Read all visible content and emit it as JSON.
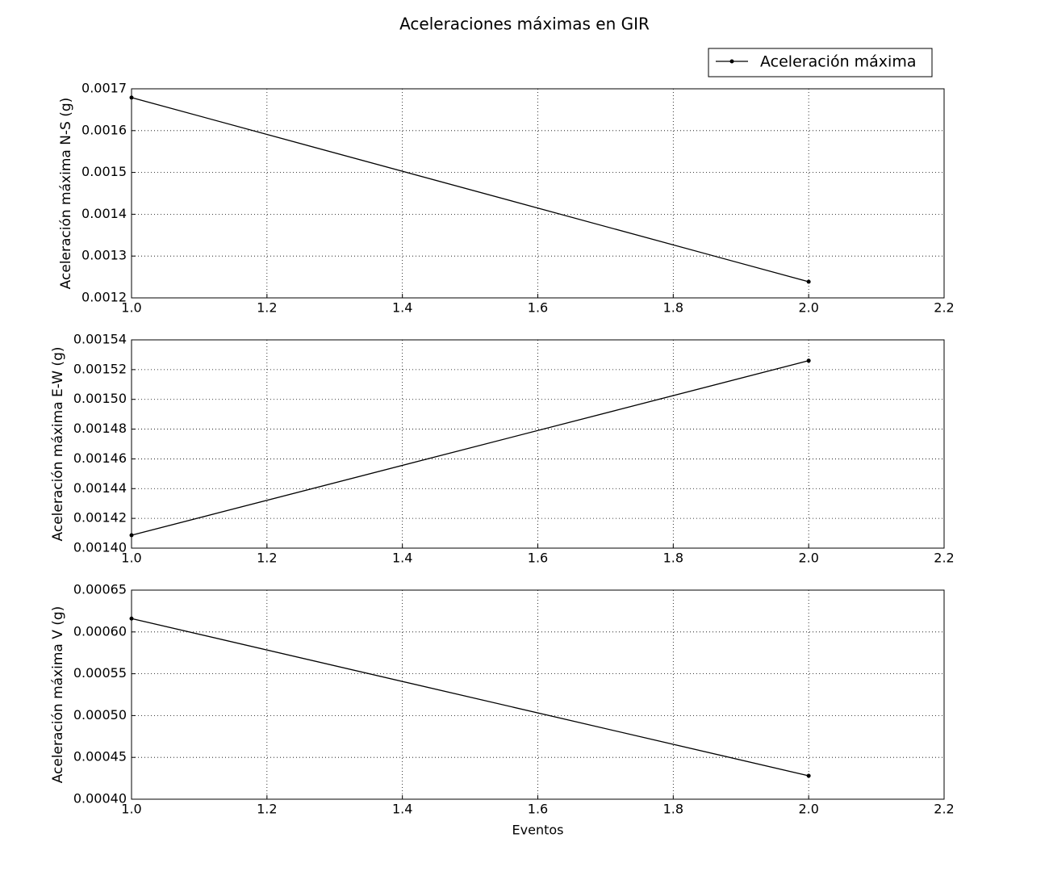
{
  "chart_data": [
    {
      "type": "line",
      "title": "Aceleraciones máximas en GIR",
      "legend": "upper right",
      "grid": true,
      "ylabel": "Aceleración máxima N-S (g)",
      "x": [
        1,
        2
      ],
      "series": [
        {
          "name": "Aceleración máxima",
          "color": "#000000",
          "values": [
            0.001679,
            0.0012386
          ]
        }
      ],
      "xlim": [
        1.0,
        2.2
      ],
      "xticks": [
        {
          "value": 1,
          "label": "1.0"
        },
        1.2,
        1.4,
        1.6,
        1.8,
        {
          "value": 2,
          "label": "2.0"
        },
        2.2
      ],
      "ylim": [
        0.0012,
        0.0017
      ],
      "yticks": [
        0.0012,
        0.0013,
        0.0014,
        0.0015,
        0.0016,
        0.0017
      ]
    },
    {
      "type": "line",
      "grid": true,
      "ylabel": "Aceleración máxima E-W (g)",
      "x": [
        1,
        2
      ],
      "series": [
        {
          "color": "#000000",
          "values": [
            0.0014087,
            0.001526
          ]
        }
      ],
      "xlim": [
        1.0,
        2.2
      ],
      "xticks": [
        {
          "value": 1,
          "label": "1.0"
        },
        1.2,
        1.4,
        1.6,
        1.8,
        {
          "value": 2,
          "label": "2.0"
        },
        2.2
      ],
      "ylim": [
        0.0014,
        0.00154
      ],
      "yticks": [
        {
          "value": 0.0014,
          "label": "0.00140"
        },
        0.00142,
        0.00144,
        0.00146,
        0.00148,
        {
          "value": 0.0015,
          "label": "0.00150"
        },
        0.00152,
        0.00154
      ]
    },
    {
      "type": "line",
      "grid": true,
      "ylabel": "Aceleración máxima V (g)",
      "xlabel": "Eventos",
      "x": [
        1,
        2
      ],
      "series": [
        {
          "color": "#000000",
          "values": [
            0.000616,
            0.000428
          ]
        }
      ],
      "xlim": [
        1.0,
        2.2
      ],
      "xticks": [
        {
          "value": 1,
          "label": "1.0"
        },
        1.2,
        1.4,
        1.6,
        1.8,
        {
          "value": 2,
          "label": "2.0"
        },
        2.2
      ],
      "ylim": [
        0.0004,
        0.00065
      ],
      "yticks": [
        {
          "value": 0.0004,
          "label": "0.00040"
        },
        0.00045,
        {
          "value": 0.0005,
          "label": "0.00050"
        },
        0.00055,
        {
          "value": 0.0006,
          "label": "0.00060"
        },
        0.00065
      ]
    }
  ]
}
